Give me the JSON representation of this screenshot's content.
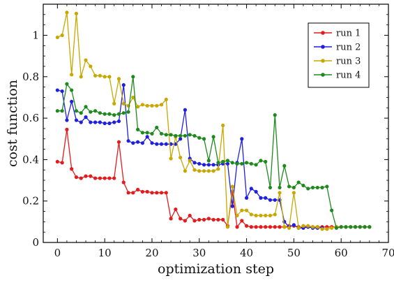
{
  "chart_data": {
    "type": "line",
    "xlabel": "optimization step",
    "ylabel": "cost function",
    "xlim": [
      -3,
      70
    ],
    "ylim": [
      0,
      1.15
    ],
    "xticks": [
      0,
      10,
      20,
      30,
      40,
      50,
      60,
      70
    ],
    "yticks": [
      0,
      0.2,
      0.4,
      0.6,
      0.8,
      1
    ],
    "ytick_labels": [
      "0",
      "0.2",
      "0.4",
      "0.6",
      "0.8",
      "1"
    ],
    "grid": false,
    "legend_position": "top-right",
    "series": [
      {
        "name": "run 1",
        "color": "#e41a1c",
        "values": [
          0.39,
          0.385,
          0.545,
          0.355,
          0.315,
          0.31,
          0.32,
          0.32,
          0.31,
          0.31,
          0.31,
          0.31,
          0.31,
          0.485,
          0.29,
          0.24,
          0.24,
          0.255,
          0.245,
          0.245,
          0.24,
          0.24,
          0.24,
          0.24,
          0.115,
          0.16,
          0.115,
          0.105,
          0.13,
          0.105,
          0.11,
          0.11,
          0.115,
          0.11,
          0.11,
          0.11,
          0.08,
          0.245,
          0.075,
          0.105,
          0.08,
          0.075,
          0.075,
          0.075,
          0.075,
          0.075,
          0.075,
          0.075,
          0.075,
          0.08,
          0.08,
          0.075,
          0.075,
          0.075,
          0.075,
          0.075,
          0.075,
          0.075,
          0.075,
          0.075,
          0.075,
          0.075,
          0.075,
          0.075,
          0.075,
          0.075,
          0.075
        ]
      },
      {
        "name": "run 2",
        "color": "#1f1fe0",
        "values": [
          0.735,
          0.73,
          0.59,
          0.68,
          0.59,
          0.58,
          0.605,
          0.58,
          0.58,
          0.58,
          0.575,
          0.575,
          0.58,
          0.585,
          0.76,
          0.49,
          0.48,
          0.485,
          0.48,
          0.51,
          0.48,
          0.475,
          0.475,
          0.475,
          0.475,
          0.475,
          0.5,
          0.64,
          0.405,
          0.385,
          0.38,
          0.375,
          0.375,
          0.375,
          0.375,
          0.38,
          0.38,
          0.175,
          0.385,
          0.5,
          0.215,
          0.26,
          0.245,
          0.215,
          0.215,
          0.205,
          0.205,
          0.205,
          0.1,
          0.075,
          0.085,
          0.07,
          0.07,
          0.075,
          0.07,
          0.07,
          0.07
        ]
      },
      {
        "name": "run 3",
        "color": "#c8a800",
        "values": [
          0.99,
          1.0,
          1.11,
          0.81,
          1.105,
          0.8,
          0.88,
          0.85,
          0.805,
          0.805,
          0.8,
          0.8,
          0.67,
          0.79,
          0.67,
          0.66,
          0.7,
          0.655,
          0.665,
          0.66,
          0.66,
          0.66,
          0.665,
          0.69,
          0.405,
          0.51,
          0.41,
          0.345,
          0.395,
          0.35,
          0.345,
          0.345,
          0.345,
          0.345,
          0.355,
          0.565,
          0.075,
          0.27,
          0.13,
          0.155,
          0.155,
          0.135,
          0.13,
          0.13,
          0.13,
          0.13,
          0.135,
          0.24,
          0.075,
          0.07,
          0.24,
          0.07,
          0.08,
          0.08,
          0.075,
          0.075,
          0.065,
          0.065,
          0.07,
          0.075
        ]
      },
      {
        "name": "run 4",
        "color": "#1e8a1e",
        "values": [
          0.635,
          0.635,
          0.765,
          0.735,
          0.635,
          0.625,
          0.655,
          0.63,
          0.635,
          0.625,
          0.62,
          0.62,
          0.615,
          0.62,
          0.625,
          0.63,
          0.8,
          0.545,
          0.53,
          0.53,
          0.525,
          0.555,
          0.525,
          0.52,
          0.52,
          0.515,
          0.515,
          0.515,
          0.52,
          0.515,
          0.505,
          0.5,
          0.395,
          0.51,
          0.385,
          0.39,
          0.395,
          0.385,
          0.38,
          0.38,
          0.385,
          0.38,
          0.375,
          0.395,
          0.39,
          0.265,
          0.615,
          0.265,
          0.37,
          0.27,
          0.265,
          0.29,
          0.275,
          0.26,
          0.265,
          0.265,
          0.265,
          0.27,
          0.155,
          0.07,
          0.075,
          0.075,
          0.075,
          0.075,
          0.075,
          0.075,
          0.075
        ]
      }
    ]
  }
}
